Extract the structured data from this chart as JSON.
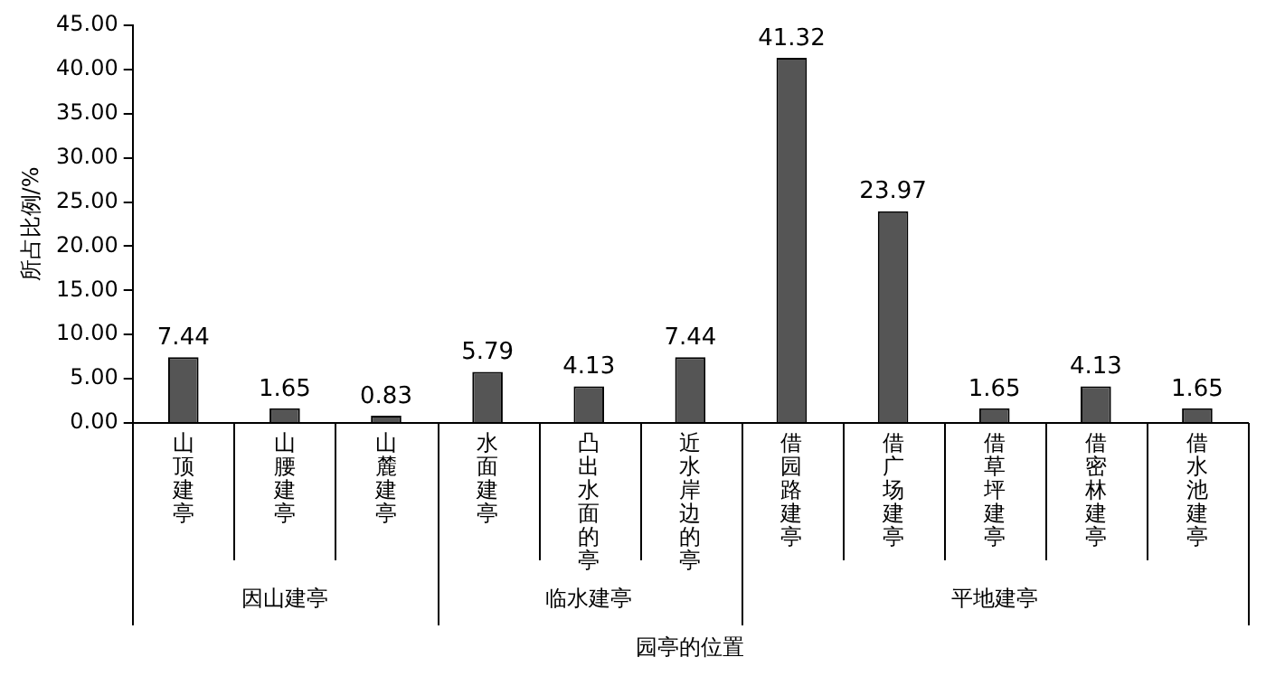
{
  "chart_data": {
    "type": "bar",
    "xlabel": "园亭的位置",
    "ylabel": "所占比例/%",
    "categories": [
      "山顶建亭",
      "山腰建亭",
      "山麓建亭",
      "水面建亭",
      "凸出水面的亭",
      "近水岸边的亭",
      "借园路建亭",
      "借广场建亭",
      "借草坪建亭",
      "借密林建亭",
      "借水池建亭"
    ],
    "values": [
      7.44,
      1.65,
      0.83,
      5.79,
      4.13,
      7.44,
      41.32,
      23.97,
      1.65,
      4.13,
      1.65
    ],
    "color": "#555555",
    "ylim": [
      0,
      45
    ],
    "yticks": [
      {
        "value": 0,
        "label": "0.00"
      },
      {
        "value": 5,
        "label": "5.00"
      },
      {
        "value": 10,
        "label": "10.00"
      },
      {
        "value": 15,
        "label": "15.00"
      },
      {
        "value": 20,
        "label": "20.00"
      },
      {
        "value": 25,
        "label": "25.00"
      },
      {
        "value": 30,
        "label": "30.00"
      },
      {
        "value": 35,
        "label": "35.00"
      },
      {
        "value": 40,
        "label": "40.00"
      },
      {
        "value": 45,
        "label": "45.00"
      }
    ],
    "annotations": [
      "因山建亭",
      "临水建亭",
      "平地建亭"
    ],
    "data_labels": true,
    "grid": false,
    "legend": false
  }
}
